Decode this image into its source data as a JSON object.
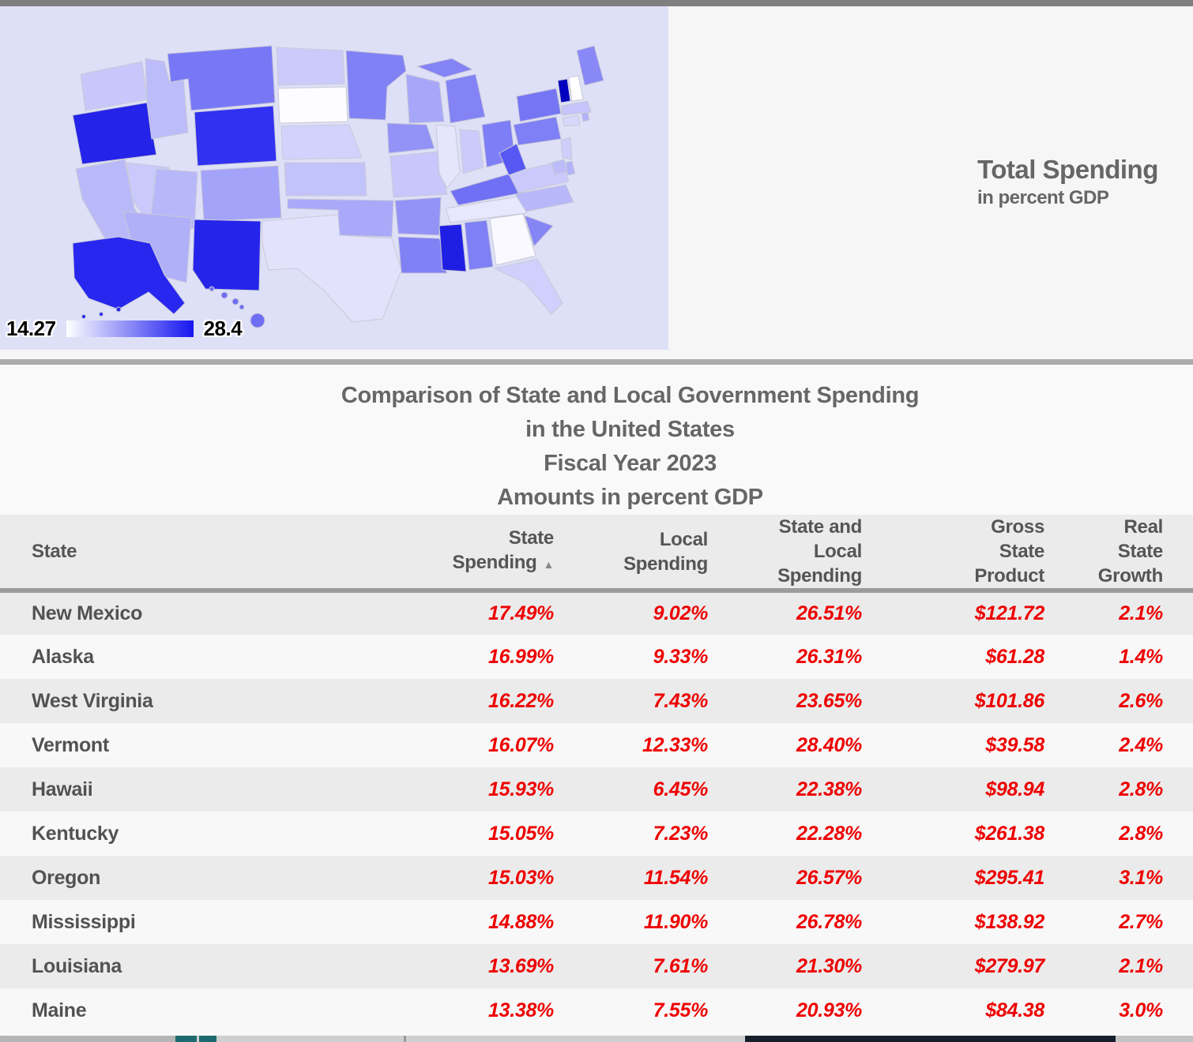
{
  "map_panel": {
    "title": "Total Spending",
    "subtitle": "in percent GDP",
    "background": "#dee0f8",
    "legend": {
      "min_label": "14.27",
      "max_label": "28.4"
    }
  },
  "table": {
    "title_lines": [
      "Comparison of State and Local Government Spending",
      "in the United States",
      "Fiscal Year 2023",
      "Amounts in percent GDP"
    ],
    "sort_arrow": "▲",
    "columns": [
      {
        "lines": [
          "State"
        ]
      },
      {
        "lines": [
          "State",
          "Spending"
        ],
        "sorted": "ascending"
      },
      {
        "lines": [
          "Local",
          "Spending"
        ]
      },
      {
        "lines": [
          "State and",
          "Local",
          "Spending"
        ]
      },
      {
        "lines": [
          "Gross",
          "State",
          "Product"
        ]
      },
      {
        "lines": [
          "Real",
          "State",
          "Growth"
        ]
      }
    ],
    "rows": [
      {
        "state": "New Mexico",
        "state_spending": "17.49%",
        "local_spending": "9.02%",
        "state_and_local": "26.51%",
        "gross_state_product": "$121.72",
        "real_growth": "2.1%"
      },
      {
        "state": "Alaska",
        "state_spending": "16.99%",
        "local_spending": "9.33%",
        "state_and_local": "26.31%",
        "gross_state_product": "$61.28",
        "real_growth": "1.4%"
      },
      {
        "state": "West Virginia",
        "state_spending": "16.22%",
        "local_spending": "7.43%",
        "state_and_local": "23.65%",
        "gross_state_product": "$101.86",
        "real_growth": "2.6%"
      },
      {
        "state": "Vermont",
        "state_spending": "16.07%",
        "local_spending": "12.33%",
        "state_and_local": "28.40%",
        "gross_state_product": "$39.58",
        "real_growth": "2.4%"
      },
      {
        "state": "Hawaii",
        "state_spending": "15.93%",
        "local_spending": "6.45%",
        "state_and_local": "22.38%",
        "gross_state_product": "$98.94",
        "real_growth": "2.8%"
      },
      {
        "state": "Kentucky",
        "state_spending": "15.05%",
        "local_spending": "7.23%",
        "state_and_local": "22.28%",
        "gross_state_product": "$261.38",
        "real_growth": "2.8%"
      },
      {
        "state": "Oregon",
        "state_spending": "15.03%",
        "local_spending": "11.54%",
        "state_and_local": "26.57%",
        "gross_state_product": "$295.41",
        "real_growth": "3.1%"
      },
      {
        "state": "Mississippi",
        "state_spending": "14.88%",
        "local_spending": "11.90%",
        "state_and_local": "26.78%",
        "gross_state_product": "$138.92",
        "real_growth": "2.7%"
      },
      {
        "state": "Louisiana",
        "state_spending": "13.69%",
        "local_spending": "7.61%",
        "state_and_local": "21.30%",
        "gross_state_product": "$279.97",
        "real_growth": "2.1%"
      },
      {
        "state": "Maine",
        "state_spending": "13.38%",
        "local_spending": "7.55%",
        "state_and_local": "20.93%",
        "gross_state_product": "$84.38",
        "real_growth": "3.0%"
      }
    ]
  },
  "chart_data": [
    {
      "type": "choropleth_map",
      "title": "Total Spending",
      "subtitle": "in percent GDP",
      "unit": "percent of GDP",
      "legend": {
        "min": 14.27,
        "max": 28.4,
        "low_color": "#ffffff",
        "bar_high_color": "#1515f0",
        "high_color": "#0000be"
      },
      "exact_values_from_table": [
        "NM",
        "AK",
        "WV",
        "VT",
        "HI",
        "KY",
        "OR",
        "MS",
        "LA",
        "ME"
      ],
      "note": "values for states not in the table are estimated from map shading",
      "states": {
        "AL": 21.4,
        "AK": 26.31,
        "AZ": 18.7,
        "AR": 20.3,
        "CA": 18.2,
        "CO": 19.4,
        "CT": 16.5,
        "DE": 18.5,
        "FL": 16.9,
        "GA": 14.6,
        "HI": 22.38,
        "ID": 18.0,
        "IL": 15.7,
        "IN": 17.2,
        "IA": 20.3,
        "KS": 17.6,
        "KY": 22.28,
        "LA": 21.3,
        "ME": 20.93,
        "MD": 18.0,
        "MA": 17.5,
        "MI": 21.2,
        "MN": 21.3,
        "MS": 26.78,
        "MO": 17.4,
        "MT": 21.8,
        "NE": 16.8,
        "NV": 17.3,
        "NH": 14.27,
        "NJ": 17.0,
        "NM": 26.51,
        "NY": 21.9,
        "NC": 18.3,
        "ND": 17.2,
        "OH": 21.5,
        "OK": 19.1,
        "OR": 26.57,
        "PA": 21.4,
        "RI": 18.5,
        "SC": 21.1,
        "SD": 14.4,
        "TN": 15.6,
        "TX": 15.9,
        "UT": 18.3,
        "VT": 28.4,
        "VA": 17.3,
        "WA": 17.4,
        "WV": 23.65,
        "WI": 19.2,
        "WY": 25.8
      }
    },
    {
      "type": "table",
      "title": "Comparison of State and Local Government Spending in the United States, Fiscal Year 2023, Amounts in percent GDP",
      "columns": [
        "State",
        "State Spending",
        "Local Spending",
        "State and Local Spending",
        "Gross State Product",
        "Real State Growth"
      ],
      "sorted_by": "State Spending (ascending shown top-down descending values)",
      "rows": [
        [
          "New Mexico",
          17.49,
          9.02,
          26.51,
          121.72,
          2.1
        ],
        [
          "Alaska",
          16.99,
          9.33,
          26.31,
          61.28,
          1.4
        ],
        [
          "West Virginia",
          16.22,
          7.43,
          23.65,
          101.86,
          2.6
        ],
        [
          "Vermont",
          16.07,
          12.33,
          28.4,
          39.58,
          2.4
        ],
        [
          "Hawaii",
          15.93,
          6.45,
          22.38,
          98.94,
          2.8
        ],
        [
          "Kentucky",
          15.05,
          7.23,
          22.28,
          261.38,
          2.8
        ],
        [
          "Oregon",
          15.03,
          11.54,
          26.57,
          295.41,
          3.1
        ],
        [
          "Mississippi",
          14.88,
          11.9,
          26.78,
          138.92,
          2.7
        ],
        [
          "Louisiana",
          13.69,
          7.61,
          21.3,
          279.97,
          2.1
        ],
        [
          "Maine",
          13.38,
          7.55,
          20.93,
          84.38,
          3.0
        ]
      ]
    }
  ]
}
